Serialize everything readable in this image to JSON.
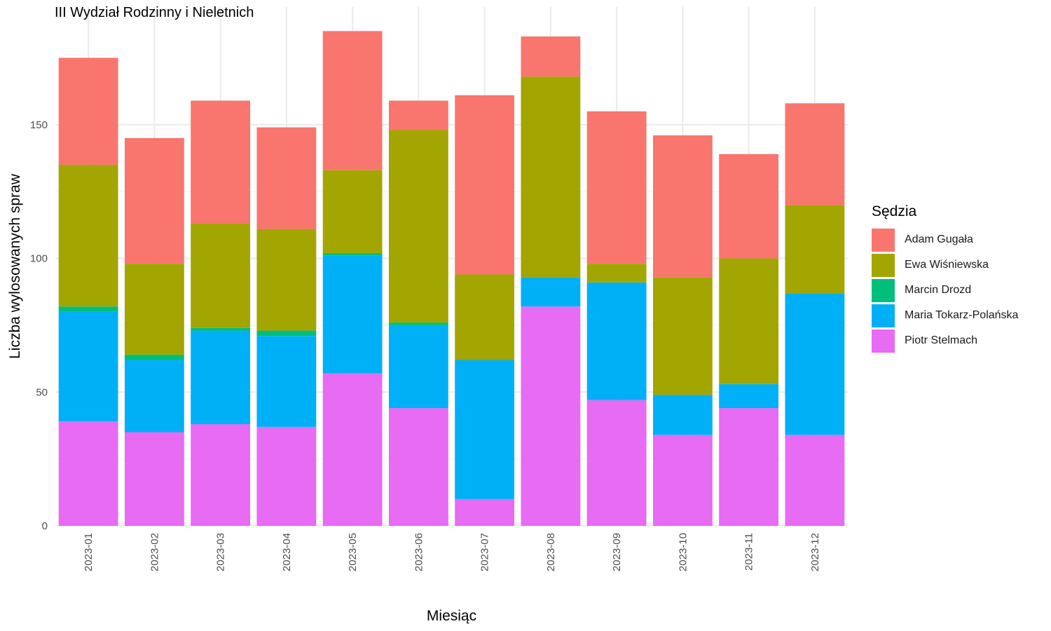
{
  "chart_data": {
    "type": "bar",
    "stacked": true,
    "title": "III Wydział Rodzinny i Nieletnich",
    "xlabel": "Miesiąc",
    "ylabel": "Liczba wylosowanych spraw",
    "ylim": [
      0,
      194
    ],
    "yticks": [
      0,
      50,
      100,
      150
    ],
    "grid": true,
    "legend_title": "Sędzia",
    "legend_position": "right",
    "categories": [
      "2023-01",
      "2023-02",
      "2023-03",
      "2023-04",
      "2023-05",
      "2023-06",
      "2023-07",
      "2023-08",
      "2023-09",
      "2023-10",
      "2023-11",
      "2023-12"
    ],
    "series": [
      {
        "name": "Piotr Stelmach",
        "color": "#E76BF3",
        "values": [
          39,
          35,
          38,
          37,
          57,
          44,
          10,
          82,
          47,
          34,
          44,
          34
        ]
      },
      {
        "name": "Maria Tokarz-Polańska",
        "color": "#00B0F6",
        "values": [
          41,
          27,
          35,
          34,
          44,
          31,
          52,
          11,
          44,
          15,
          9,
          53
        ]
      },
      {
        "name": "Marcin Drozd",
        "color": "#00BF7D",
        "values": [
          2,
          2,
          1,
          2,
          1,
          1,
          0,
          0,
          0,
          0,
          0,
          0
        ]
      },
      {
        "name": "Ewa Wiśniewska",
        "color": "#A3A500",
        "values": [
          53,
          34,
          39,
          38,
          31,
          72,
          32,
          75,
          7,
          44,
          47,
          33
        ]
      },
      {
        "name": "Adam Gugała",
        "color": "#F8766D",
        "values": [
          40,
          47,
          46,
          38,
          52,
          11,
          67,
          15,
          57,
          53,
          39,
          38
        ]
      }
    ],
    "legend_order": [
      "Adam Gugała",
      "Ewa Wiśniewska",
      "Marcin Drozd",
      "Maria Tokarz-Polańska",
      "Piotr Stelmach"
    ]
  }
}
